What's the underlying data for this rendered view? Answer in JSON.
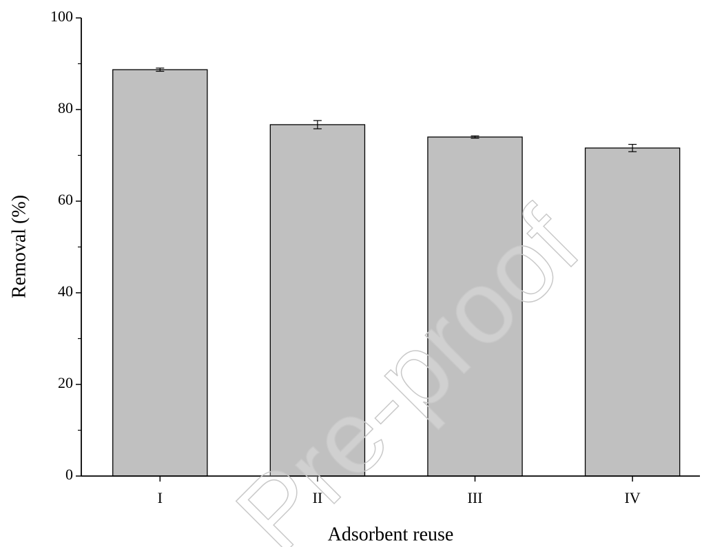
{
  "chart_data": {
    "type": "bar",
    "xlabel": "Adsorbent reuse",
    "ylabel": "Removal (%)",
    "watermark": "Pre-proof",
    "categories": [
      "I",
      "II",
      "III",
      "IV"
    ],
    "values": [
      88.7,
      76.7,
      74.0,
      71.6
    ],
    "errors": [
      0.35,
      0.9,
      0.25,
      0.8
    ],
    "color": "#c0c0c0",
    "ylim": [
      0,
      100
    ],
    "yticks": [
      0,
      20,
      40,
      60,
      80,
      100
    ],
    "minor_yticks": [
      10,
      30,
      50,
      70,
      90
    ]
  }
}
